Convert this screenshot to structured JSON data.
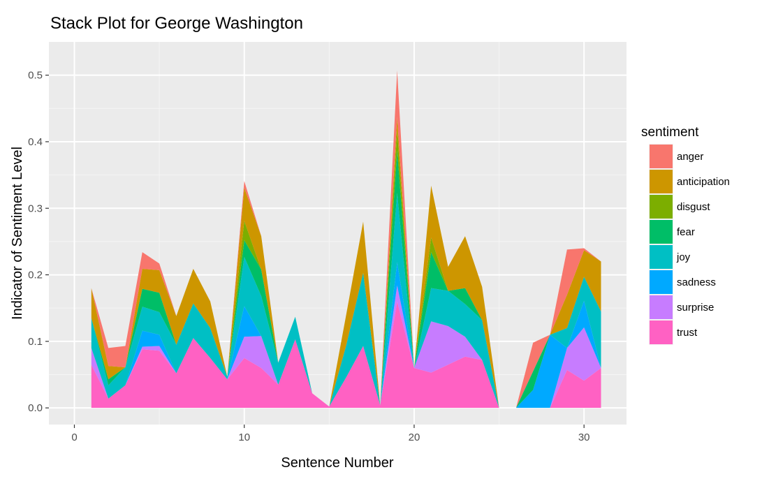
{
  "chart_data": {
    "type": "area",
    "stacked": true,
    "title": "Stack Plot for George Washington",
    "xlabel": "Sentence Number",
    "ylabel": "Indicator of Sentiment Level",
    "xlim": [
      -1.5,
      32.5
    ],
    "ylim": [
      -0.025,
      0.55
    ],
    "x_ticks": [
      0,
      10,
      20,
      30
    ],
    "y_ticks": [
      0.0,
      0.1,
      0.2,
      0.3,
      0.4,
      0.5
    ],
    "y_tick_labels": [
      "0.0",
      "0.1",
      "0.2",
      "0.3",
      "0.4",
      "0.5"
    ],
    "grid": true,
    "legend_title": "sentiment",
    "legend_position": "right",
    "x": [
      1,
      2,
      3,
      4,
      5,
      6,
      7,
      8,
      9,
      10,
      11,
      12,
      13,
      14,
      15,
      16,
      17,
      18,
      19,
      20,
      21,
      22,
      23,
      24,
      25,
      26,
      27,
      28,
      29,
      30,
      31
    ],
    "series": [
      {
        "name": "trust",
        "color": "#FF61C3",
        "values": [
          0.065,
          0.014,
          0.034,
          0.088,
          0.086,
          0.052,
          0.105,
          0.075,
          0.043,
          0.075,
          0.06,
          0.035,
          0.103,
          0.022,
          0.002,
          0.046,
          0.093,
          0.004,
          0.16,
          0.06,
          0.053,
          0.065,
          0.077,
          0.072,
          0.0,
          0.0,
          0.0,
          0.0,
          0.057,
          0.041,
          0.06
        ]
      },
      {
        "name": "surprise",
        "color": "#C77CFF",
        "values": [
          0.025,
          0.0,
          0.0,
          0.004,
          0.007,
          0.0,
          0.0,
          0.0,
          0.0,
          0.032,
          0.048,
          0.0,
          0.0,
          0.0,
          0.0,
          0.0,
          0.0,
          0.0,
          0.024,
          0.0,
          0.077,
          0.058,
          0.03,
          0.0,
          0.0,
          0.0,
          0.0,
          0.0,
          0.033,
          0.08,
          0.0
        ]
      },
      {
        "name": "sadness",
        "color": "#00A9FF",
        "values": [
          0.0,
          0.0,
          0.0,
          0.024,
          0.017,
          0.0,
          0.0,
          0.0,
          0.0,
          0.046,
          0.0,
          0.0,
          0.0,
          0.0,
          0.0,
          0.0,
          0.0,
          0.0,
          0.035,
          0.0,
          0.0,
          0.0,
          0.0,
          0.0,
          0.0,
          0.0,
          0.027,
          0.11,
          0.0,
          0.04,
          0.0
        ]
      },
      {
        "name": "joy",
        "color": "#00BFC4",
        "values": [
          0.045,
          0.02,
          0.027,
          0.036,
          0.034,
          0.043,
          0.052,
          0.045,
          0.004,
          0.074,
          0.06,
          0.033,
          0.034,
          0.0,
          0.0,
          0.048,
          0.11,
          0.0,
          0.104,
          0.0,
          0.05,
          0.053,
          0.049,
          0.06,
          0.0,
          0.0,
          0.0,
          0.0,
          0.03,
          0.036,
          0.085
        ]
      },
      {
        "name": "fear",
        "color": "#00BE67",
        "values": [
          0.0,
          0.009,
          0.0,
          0.027,
          0.029,
          0.0,
          0.0,
          0.0,
          0.0,
          0.025,
          0.04,
          0.0,
          0.0,
          0.0,
          0.0,
          0.0,
          0.0,
          0.0,
          0.064,
          0.0,
          0.054,
          0.0,
          0.024,
          0.0,
          0.0,
          0.0,
          0.028,
          0.0,
          0.0,
          0.0,
          0.0
        ]
      },
      {
        "name": "disgust",
        "color": "#7CAE00",
        "values": [
          0.0,
          0.0,
          0.0,
          0.0,
          0.0,
          0.0,
          0.0,
          0.0,
          0.0,
          0.029,
          0.0,
          0.0,
          0.0,
          0.0,
          0.0,
          0.0,
          0.0,
          0.0,
          0.03,
          0.0,
          0.022,
          0.0,
          0.0,
          0.0,
          0.0,
          0.0,
          0.0,
          0.0,
          0.0,
          0.0,
          0.0
        ]
      },
      {
        "name": "anticipation",
        "color": "#CD9600",
        "values": [
          0.045,
          0.02,
          0.0,
          0.03,
          0.034,
          0.043,
          0.052,
          0.04,
          0.0,
          0.05,
          0.05,
          0.0,
          0.0,
          0.0,
          0.0,
          0.046,
          0.077,
          0.0,
          0.02,
          0.0,
          0.078,
          0.036,
          0.078,
          0.05,
          0.0,
          0.0,
          0.0,
          0.0,
          0.05,
          0.04,
          0.075
        ]
      },
      {
        "name": "anger",
        "color": "#F8766D",
        "values": [
          0.0,
          0.027,
          0.032,
          0.025,
          0.01,
          0.0,
          0.0,
          0.0,
          0.0,
          0.01,
          0.0,
          0.0,
          0.0,
          0.0,
          0.0,
          0.0,
          0.0,
          0.0,
          0.07,
          0.0,
          0.0,
          0.0,
          0.0,
          0.0,
          0.0,
          0.0,
          0.043,
          0.0,
          0.068,
          0.003,
          0.0
        ]
      }
    ]
  }
}
